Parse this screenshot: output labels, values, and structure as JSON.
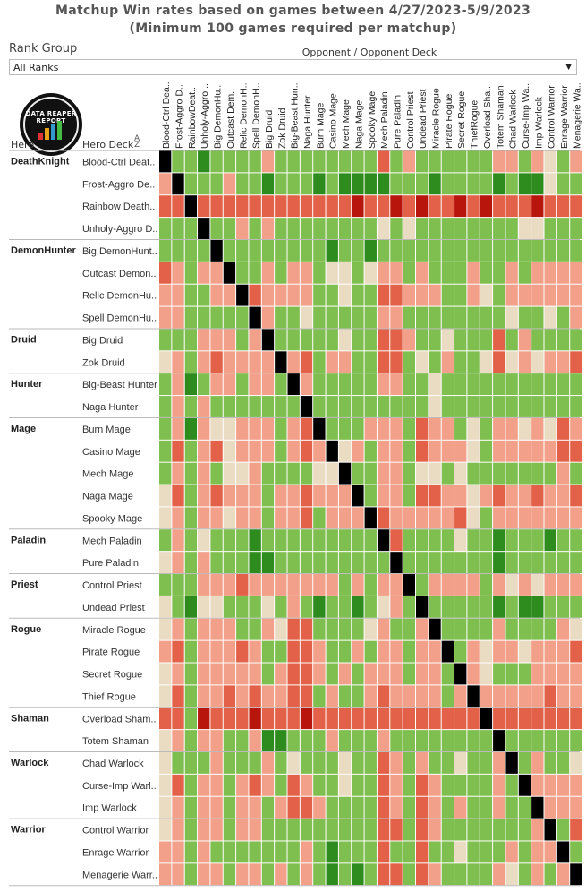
{
  "title_line1": "Matchup Win rates based on games between 4/27/2023-5/9/2023",
  "title_line2": "(Minimum 100 games required per matchup)",
  "filter": {
    "label": "Rank Group",
    "selected": "All Ranks"
  },
  "column_header": "Opponent / Opponent Deck",
  "hero_label": "Hero",
  "deck_label": "Hero Deck",
  "logo_text": "DATA REAPER REPORT",
  "colors": {
    "strong_win": "#2e8b1e",
    "win": "#7fbf4f",
    "slight_win": "#b5dd8a",
    "even": "#eadbc3",
    "slight_loss": "#f2a089",
    "loss": "#e26148",
    "strong_loss": "#b8150c",
    "mirror": "#000000"
  },
  "chart_data": {
    "type": "heatmap",
    "title": "Matchup Win rates based on games between 4/27/2023-5/9/2023",
    "subtitle": "(Minimum 100 games required per matchup)",
    "xlabel": "Opponent / Opponent Deck",
    "ylabel": "Hero Deck",
    "value_scale": "-3 strong loss ... 0 even ... +3 strong win; mirror matchups black",
    "heroes": [
      {
        "name": "DeathKnight",
        "decks": [
          "Blood-Ctrl Deat..",
          "Frost-Aggro De..",
          "Rainbow Death..",
          "Unholy-Aggro D.."
        ]
      },
      {
        "name": "DemonHunter",
        "decks": [
          "Big DemonHunt..",
          "Outcast Demon..",
          "Relic DemonHu..",
          "Spell DemonHu.."
        ]
      },
      {
        "name": "Druid",
        "decks": [
          "Big Druid",
          "Zok Druid"
        ]
      },
      {
        "name": "Hunter",
        "decks": [
          "Big-Beast Hunter",
          "Naga Hunter"
        ]
      },
      {
        "name": "Mage",
        "decks": [
          "Burn Mage",
          "Casino Mage",
          "Mech Mage",
          "Naga Mage",
          "Spooky Mage"
        ]
      },
      {
        "name": "Paladin",
        "decks": [
          "Mech Paladin",
          "Pure Paladin"
        ]
      },
      {
        "name": "Priest",
        "decks": [
          "Control Priest",
          "Undead Priest"
        ]
      },
      {
        "name": "Rogue",
        "decks": [
          "Miracle Rogue",
          "Pirate Rogue",
          "Secret Rogue",
          "Thief Rogue"
        ]
      },
      {
        "name": "Shaman",
        "decks": [
          "Overload Sham..",
          "Totem Shaman"
        ]
      },
      {
        "name": "Warlock",
        "decks": [
          "Chad Warlock",
          "Curse-Imp Warl..",
          "Imp Warlock"
        ]
      },
      {
        "name": "Warrior",
        "decks": [
          "Control Warrior",
          "Enrage Warrior",
          "Menagerie Warr.."
        ]
      }
    ],
    "columns": [
      "Blood-Ctrl Dea..",
      "Frost-Aggro D..",
      "RainbowDeat..",
      "Unholy-Aggro ..",
      "Big DemonHu..",
      "Outcast Dem..",
      "Relic DemonH..",
      "Spell DemonH..",
      "Big Druid",
      "Zok Druid",
      "Big-Beast Hun..",
      "Naga Hunter",
      "Burn Mage",
      "Casino Mage",
      "Mech Mage",
      "Naga Mage",
      "Spooky Mage",
      "Mech Paladin",
      "Pure Paladin",
      "Control Priest",
      "Undead Priest",
      "Miracle Rogue",
      "Pirate Rogue",
      "Secret Rogue",
      "ThiefRogue",
      "Overload Sha..",
      "Totem Shaman",
      "Chad Warlock",
      "Curse-Imp Wa..",
      "Imp Warlock",
      "Control Warrior",
      "Enrage Warrior",
      "Menagerie Wa.."
    ],
    "values": [
      [
        null,
        1,
        1,
        2,
        1,
        1,
        1,
        1,
        -1,
        1,
        1,
        1,
        1,
        1,
        1,
        1,
        1,
        -2,
        1,
        -1,
        1,
        1,
        1,
        1,
        1,
        1,
        -1,
        -1,
        1,
        -1,
        0,
        1,
        -1
      ],
      [
        -1,
        null,
        1,
        1,
        1,
        -1,
        1,
        1,
        2,
        1,
        1,
        1,
        2,
        1,
        2,
        2,
        2,
        2,
        1,
        1,
        1,
        2,
        1,
        1,
        1,
        1,
        2,
        1,
        2,
        2,
        0,
        1,
        1
      ],
      [
        -2,
        -2,
        null,
        -2,
        -2,
        -2,
        -2,
        -2,
        -2,
        -2,
        -2,
        -2,
        -2,
        -2,
        -2,
        -3,
        -2,
        -2,
        -3,
        -2,
        -3,
        -2,
        -2,
        -3,
        -2,
        -3,
        -2,
        -2,
        -2,
        -3,
        -2,
        -2,
        -2
      ],
      [
        1,
        1,
        1,
        null,
        1,
        1,
        -1,
        1,
        -1,
        1,
        1,
        1,
        1,
        1,
        1,
        1,
        1,
        0,
        1,
        0,
        1,
        1,
        1,
        1,
        1,
        1,
        1,
        1,
        0,
        0,
        1,
        1,
        1
      ],
      [
        1,
        1,
        1,
        1,
        null,
        1,
        1,
        1,
        1,
        1,
        1,
        1,
        1,
        2,
        1,
        1,
        2,
        1,
        1,
        1,
        1,
        1,
        1,
        1,
        1,
        1,
        1,
        1,
        1,
        1,
        1,
        1,
        1
      ],
      [
        -2,
        -1,
        1,
        -1,
        -1,
        null,
        1,
        1,
        -1,
        1,
        -1,
        -1,
        1,
        0,
        0,
        1,
        0,
        -1,
        -1,
        1,
        -1,
        1,
        1,
        1,
        -1,
        1,
        1,
        -1,
        1,
        -1,
        -1,
        -1,
        -1
      ],
      [
        -1,
        -1,
        1,
        1,
        -1,
        -1,
        null,
        -2,
        -1,
        -1,
        -1,
        -1,
        1,
        1,
        0,
        1,
        1,
        -2,
        -2,
        -1,
        -1,
        -1,
        1,
        1,
        -1,
        0,
        1,
        -1,
        -1,
        -1,
        -1,
        -1,
        -1
      ],
      [
        -1,
        -1,
        1,
        1,
        1,
        1,
        1,
        null,
        -1,
        1,
        1,
        0,
        1,
        1,
        1,
        1,
        1,
        -1,
        -1,
        1,
        1,
        1,
        1,
        1,
        1,
        1,
        1,
        0,
        1,
        1,
        0,
        1,
        -1
      ],
      [
        1,
        1,
        1,
        -1,
        -1,
        -1,
        1,
        -1,
        null,
        1,
        1,
        1,
        1,
        1,
        0,
        1,
        1,
        -2,
        -2,
        -1,
        1,
        1,
        0,
        1,
        1,
        1,
        -2,
        1,
        -1,
        1,
        1,
        1,
        1
      ],
      [
        0,
        -1,
        1,
        -1,
        -2,
        -1,
        -1,
        -1,
        -1,
        null,
        -1,
        -2,
        1,
        -1,
        -1,
        1,
        1,
        -2,
        -2,
        1,
        0,
        1,
        -1,
        1,
        1,
        0,
        -2,
        0,
        -1,
        0,
        -1,
        -1,
        -2
      ],
      [
        1,
        -1,
        2,
        1,
        -1,
        -1,
        1,
        -1,
        -1,
        1,
        null,
        -1,
        1,
        1,
        1,
        1,
        1,
        -1,
        -1,
        1,
        1,
        0,
        1,
        1,
        1,
        1,
        1,
        1,
        1,
        1,
        1,
        1,
        1
      ],
      [
        1,
        -1,
        1,
        -1,
        1,
        1,
        1,
        1,
        1,
        1,
        1,
        null,
        1,
        1,
        1,
        1,
        1,
        1,
        1,
        1,
        1,
        0,
        1,
        1,
        1,
        1,
        1,
        1,
        1,
        1,
        1,
        1,
        1
      ],
      [
        1,
        -1,
        2,
        -1,
        0,
        0,
        -1,
        -1,
        -1,
        1,
        -1,
        -2,
        null,
        1,
        1,
        1,
        -1,
        -1,
        -1,
        1,
        -2,
        -1,
        -1,
        1,
        0,
        1,
        -1,
        -1,
        0,
        -1,
        0,
        -2,
        -1
      ],
      [
        1,
        -2,
        1,
        -1,
        -2,
        0,
        -1,
        -1,
        -1,
        1,
        -1,
        -2,
        -1,
        null,
        0,
        -1,
        1,
        -1,
        -1,
        1,
        -2,
        -1,
        -1,
        -1,
        0,
        1,
        -1,
        -1,
        -1,
        -1,
        -1,
        -2,
        -2
      ],
      [
        1,
        -1,
        1,
        -1,
        1,
        0,
        0,
        -1,
        1,
        1,
        1,
        1,
        0,
        0,
        null,
        1,
        1,
        -1,
        -1,
        1,
        0,
        0,
        1,
        0,
        1,
        1,
        1,
        1,
        1,
        1,
        1,
        -1,
        1
      ],
      [
        0,
        -2,
        1,
        -1,
        -2,
        -1,
        -1,
        -1,
        1,
        -1,
        -1,
        -2,
        -1,
        -1,
        -1,
        null,
        1,
        -1,
        -1,
        1,
        -2,
        -2,
        -1,
        -1,
        0,
        -1,
        -2,
        -1,
        -1,
        -2,
        -1,
        -1,
        -2
      ],
      [
        0,
        -1,
        1,
        -1,
        -1,
        0,
        -1,
        -1,
        1,
        -1,
        -1,
        -2,
        1,
        -1,
        -1,
        -1,
        null,
        -2,
        -1,
        -1,
        -1,
        -1,
        -1,
        -2,
        0,
        1,
        -1,
        -1,
        -1,
        -1,
        -1,
        -1,
        -1
      ],
      [
        1,
        -1,
        1,
        0,
        1,
        1,
        1,
        2,
        1,
        1,
        1,
        1,
        1,
        1,
        1,
        1,
        1,
        null,
        -2,
        1,
        1,
        1,
        1,
        0,
        1,
        1,
        2,
        1,
        1,
        1,
        2,
        1,
        1
      ],
      [
        0,
        -1,
        1,
        -1,
        1,
        1,
        1,
        2,
        2,
        1,
        1,
        1,
        1,
        1,
        1,
        1,
        1,
        1,
        null,
        1,
        1,
        1,
        1,
        1,
        1,
        1,
        2,
        1,
        1,
        1,
        1,
        1,
        1
      ],
      [
        1,
        1,
        1,
        -1,
        -1,
        -1,
        -2,
        -1,
        -1,
        -1,
        -1,
        -1,
        -1,
        -1,
        1,
        -1,
        1,
        -1,
        -1,
        null,
        1,
        -1,
        -1,
        -1,
        -1,
        1,
        -1,
        0,
        -1,
        0,
        -1,
        -1,
        -1
      ],
      [
        0,
        1,
        2,
        0,
        0,
        1,
        1,
        1,
        0,
        1,
        -1,
        1,
        2,
        1,
        1,
        2,
        1,
        0,
        -1,
        1,
        null,
        1,
        1,
        1,
        1,
        1,
        2,
        1,
        2,
        2,
        1,
        1,
        1
      ],
      [
        0,
        -1,
        1,
        -1,
        -1,
        -1,
        1,
        1,
        -1,
        0,
        -2,
        -2,
        1,
        1,
        1,
        1,
        0,
        -1,
        1,
        1,
        -1,
        null,
        1,
        1,
        1,
        1,
        -1,
        1,
        1,
        1,
        1,
        -1,
        0
      ],
      [
        -1,
        -2,
        1,
        -1,
        -1,
        -1,
        -2,
        -1,
        1,
        1,
        -2,
        -2,
        -1,
        1,
        1,
        -1,
        1,
        -1,
        -1,
        1,
        -1,
        -1,
        null,
        1,
        -1,
        0,
        -1,
        -1,
        0,
        -1,
        -1,
        -1,
        -2
      ],
      [
        0,
        -1,
        1,
        -1,
        -1,
        -1,
        -1,
        -1,
        1,
        -1,
        -2,
        -2,
        -1,
        1,
        -1,
        1,
        -1,
        -1,
        -1,
        1,
        -1,
        -1,
        1,
        null,
        -1,
        0,
        1,
        1,
        1,
        -1,
        -1,
        -1,
        -1
      ],
      [
        0,
        -2,
        1,
        -1,
        -1,
        -2,
        -1,
        -2,
        -1,
        -1,
        -2,
        -2,
        1,
        -1,
        1,
        1,
        -1,
        -2,
        -1,
        -1,
        -1,
        -1,
        1,
        -1,
        null,
        -1,
        -1,
        -1,
        -1,
        -1,
        -2,
        -1,
        -1
      ],
      [
        -2,
        -2,
        1,
        -3,
        -2,
        -2,
        -2,
        -3,
        -2,
        -2,
        -2,
        -3,
        -2,
        -2,
        -2,
        -2,
        -2,
        -2,
        -2,
        -2,
        -2,
        -2,
        -2,
        -2,
        -2,
        null,
        -2,
        -2,
        -2,
        -2,
        -2,
        -2,
        -2
      ],
      [
        0,
        -1,
        1,
        -1,
        -1,
        1,
        1,
        -1,
        2,
        2,
        1,
        1,
        1,
        -1,
        1,
        1,
        1,
        -1,
        1,
        1,
        1,
        1,
        1,
        1,
        1,
        1,
        null,
        1,
        1,
        1,
        1,
        1,
        1
      ],
      [
        0,
        1,
        1,
        1,
        -1,
        1,
        1,
        1,
        -1,
        1,
        0,
        1,
        1,
        1,
        0,
        1,
        1,
        -2,
        -1,
        1,
        -1,
        1,
        1,
        0,
        1,
        1,
        -1,
        null,
        1,
        -1,
        1,
        1,
        0
      ],
      [
        0,
        -2,
        1,
        -1,
        -1,
        1,
        -1,
        -2,
        -1,
        1,
        -2,
        -1,
        1,
        1,
        0,
        1,
        1,
        -2,
        -1,
        1,
        -2,
        -1,
        1,
        1,
        1,
        1,
        -1,
        1,
        null,
        -1,
        -1,
        -1,
        -1
      ],
      [
        0,
        -1,
        1,
        -1,
        -1,
        1,
        -1,
        -1,
        1,
        -1,
        -2,
        -2,
        -1,
        1,
        1,
        1,
        1,
        -2,
        -1,
        1,
        -2,
        -1,
        1,
        -1,
        1,
        1,
        -1,
        1,
        1,
        null,
        -1,
        -1,
        -1
      ],
      [
        0,
        -1,
        1,
        -1,
        -1,
        1,
        -1,
        -1,
        1,
        1,
        1,
        1,
        1,
        1,
        1,
        1,
        1,
        -2,
        -2,
        1,
        -2,
        -1,
        1,
        1,
        1,
        1,
        1,
        1,
        1,
        -1,
        null,
        1,
        -2
      ],
      [
        -1,
        -1,
        1,
        -1,
        1,
        1,
        1,
        1,
        1,
        1,
        1,
        -1,
        1,
        2,
        1,
        1,
        1,
        -2,
        1,
        1,
        -2,
        1,
        1,
        0,
        1,
        1,
        1,
        -1,
        1,
        -1,
        -1,
        null,
        1
      ],
      [
        -1,
        -1,
        1,
        -1,
        -1,
        1,
        -1,
        -1,
        1,
        -1,
        1,
        -1,
        1,
        2,
        1,
        2,
        1,
        -2,
        -2,
        1,
        -2,
        -1,
        1,
        1,
        1,
        1,
        -1,
        0,
        1,
        -1,
        1,
        -1,
        null
      ]
    ]
  }
}
